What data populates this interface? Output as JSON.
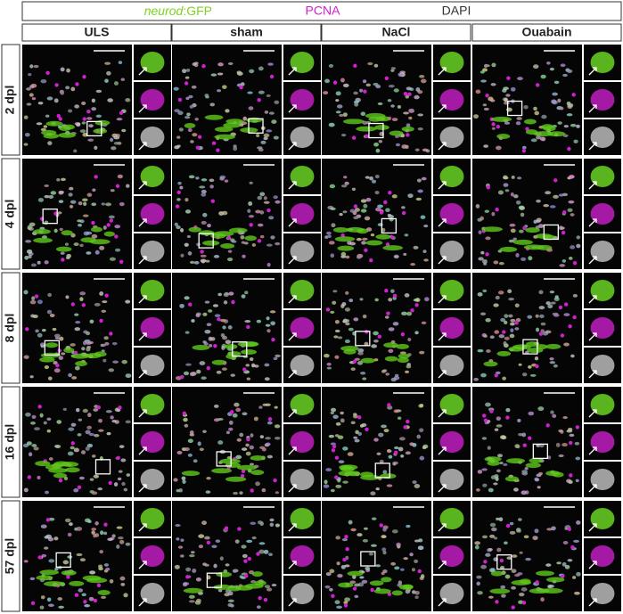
{
  "header": {
    "gfp_gene": "neurod",
    "gfp_suffix": ":GFP",
    "pcna": "PCNA",
    "dapi": "DAPI"
  },
  "columns": [
    "ULS",
    "sham",
    "NaCl",
    "Ouabain"
  ],
  "rows": [
    "2 dpl",
    "4 dpl",
    "8 dpl",
    "16 dpl",
    "57 dpl"
  ]
}
